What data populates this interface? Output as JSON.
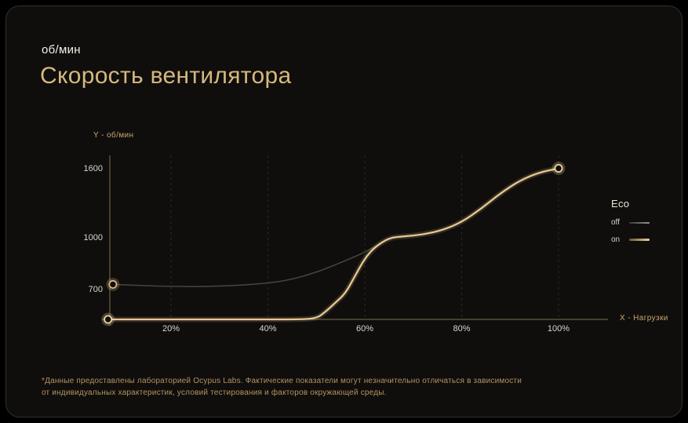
{
  "header": {
    "unit": "об/мин",
    "title": "Скорость вентилятора"
  },
  "footnote": {
    "line1": "*Данные предоставлены лабораторией Ocypus Labs. Фактические показатели могут незначительно отличаться в зависимости",
    "line2": "от индивидуальных характеристик, условий тестирования и факторов окружающей среды."
  },
  "colors": {
    "page_bg": "#000000",
    "card_bg": "#0f0e0c",
    "card_border": "#32302b",
    "accent": "#d6b87f",
    "unit": "#f4f1e9",
    "axis": "#6a5d46",
    "axis_label": "#c8a76d",
    "grid": "#2c2a26",
    "tick": "#d9d6cf",
    "footnote": "#b5935f",
    "line_on": "#e6c791",
    "line_off": "#45423c",
    "marker_on": "#f0d6a0",
    "marker_off": "#d8b984"
  },
  "chart_data": {
    "type": "line",
    "title": "Скорость вентилятора",
    "xlabel": "X - Нагрузки",
    "ylabel": "Y - об/мин",
    "x_unit": "%",
    "y_unit": "об/мин",
    "xlim": [
      0,
      110
    ],
    "ylim": [
      0,
      1700
    ],
    "y_axis_nonlinear": true,
    "grid": "vertical-dashed",
    "x_tick_labels": [
      "20%",
      "40%",
      "60%",
      "80%",
      "100%"
    ],
    "x_tick_values": [
      20,
      40,
      60,
      80,
      100
    ],
    "y_ticks": [
      1600,
      1000,
      700
    ],
    "legend": {
      "title": "Eco",
      "position": "right",
      "items": [
        {
          "label": "off"
        },
        {
          "label": "on"
        }
      ]
    },
    "series": [
      {
        "name": "off",
        "color_key": "line_off",
        "width": 1.6,
        "glow": false,
        "marker_start": true,
        "marker_end": false,
        "marker_color_key": "marker_off",
        "x": [
          8,
          14,
          20,
          26,
          32,
          38,
          44,
          50,
          54,
          58,
          62,
          65,
          68,
          72,
          76,
          80,
          84,
          88,
          92,
          96,
          100
        ],
        "values": [
          730,
          723,
          718,
          717,
          722,
          732,
          752,
          800,
          845,
          890,
          945,
          1000,
          1012,
          1028,
          1065,
          1135,
          1250,
          1385,
          1495,
          1565,
          1600
        ]
      },
      {
        "name": "on",
        "color_key": "line_on",
        "width": 2.3,
        "glow": true,
        "marker_start": true,
        "marker_end": true,
        "marker_color_key": "marker_on",
        "x": [
          7,
          15,
          25,
          35,
          45,
          50,
          52,
          54,
          56,
          58,
          60,
          62,
          65,
          68,
          72,
          76,
          80,
          84,
          88,
          92,
          96,
          100
        ],
        "values": [
          0,
          0,
          0,
          0,
          0,
          15,
          190,
          400,
          610,
          780,
          880,
          945,
          1000,
          1012,
          1028,
          1065,
          1135,
          1250,
          1385,
          1495,
          1565,
          1600
        ]
      }
    ]
  }
}
